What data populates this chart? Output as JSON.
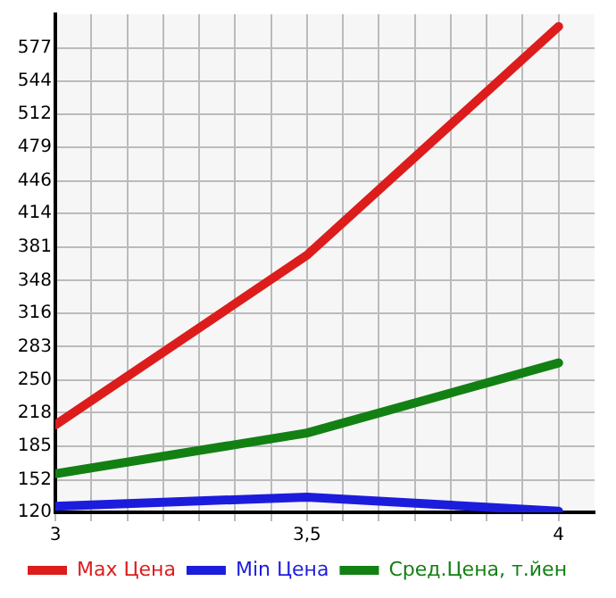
{
  "chart_data": {
    "type": "line",
    "x": [
      3,
      3.5,
      4
    ],
    "series": [
      {
        "name": "Max Цена",
        "color": "#dd1c1c",
        "values": [
          206,
          373,
          598
        ]
      },
      {
        "name": "Min Цена",
        "color": "#1c1cdd",
        "values": [
          126,
          135,
          121
        ]
      },
      {
        "name": "Сред.Цена, т.йен",
        "color": "#138013",
        "values": [
          158,
          198,
          267
        ]
      }
    ],
    "xlim": [
      3,
      4.0714
    ],
    "xticks": [
      3,
      {
        "value": 3.0714,
        "label": null
      },
      {
        "value": 3.1429,
        "label": null
      },
      {
        "value": 3.2143,
        "label": null
      },
      {
        "value": 3.2857,
        "label": null
      },
      {
        "value": 3.3571,
        "label": null
      },
      {
        "value": 3.4286,
        "label": null
      },
      {
        "value": 3.5,
        "label": "3,5"
      },
      {
        "value": 3.5714,
        "label": null
      },
      {
        "value": 3.6429,
        "label": null
      },
      {
        "value": 3.7143,
        "label": null
      },
      {
        "value": 3.7857,
        "label": null
      },
      {
        "value": 3.8571,
        "label": null
      },
      {
        "value": 3.9286,
        "label": null
      },
      4
    ],
    "ylim": [
      120,
      610
    ],
    "yticks": [
      120,
      152,
      185,
      218,
      250,
      283,
      316,
      348,
      381,
      414,
      446,
      479,
      512,
      544,
      577
    ],
    "grid": true,
    "legend": "bottom",
    "marker": "none",
    "line_style": "solid"
  }
}
